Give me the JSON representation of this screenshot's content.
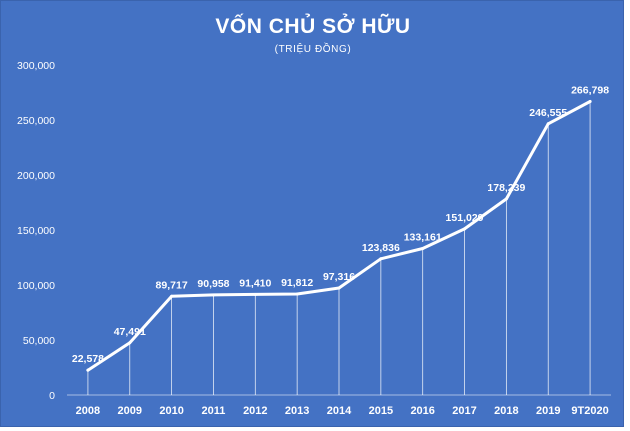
{
  "chart_data": {
    "type": "line",
    "title": "VỐN CHỦ SỞ HỮU",
    "subtitle": "(TRIỆU ĐỒNG)",
    "categories": [
      "2008",
      "2009",
      "2010",
      "2011",
      "2012",
      "2013",
      "2014",
      "2015",
      "2016",
      "2017",
      "2018",
      "2019",
      "9T2020"
    ],
    "values": [
      22578,
      47491,
      89717,
      90958,
      91410,
      91812,
      97316,
      123836,
      133161,
      151029,
      178239,
      246555,
      266798
    ],
    "value_labels": [
      "22,578",
      "47,491",
      "89,717",
      "90,958",
      "91,410",
      "91,812",
      "97,316",
      "123,836",
      "133,161",
      "151,029",
      "178,239",
      "246,555",
      "266,798"
    ],
    "ylim": [
      0,
      300000
    ],
    "yticks": [
      "0",
      "50,000",
      "100,000",
      "150,000",
      "200,000",
      "250,000",
      "300,000"
    ],
    "grid": false,
    "drop_lines": true,
    "legend": "none",
    "colors": {
      "background": "#4472c4",
      "line": "#ffffff",
      "text": "#ffffff"
    }
  }
}
